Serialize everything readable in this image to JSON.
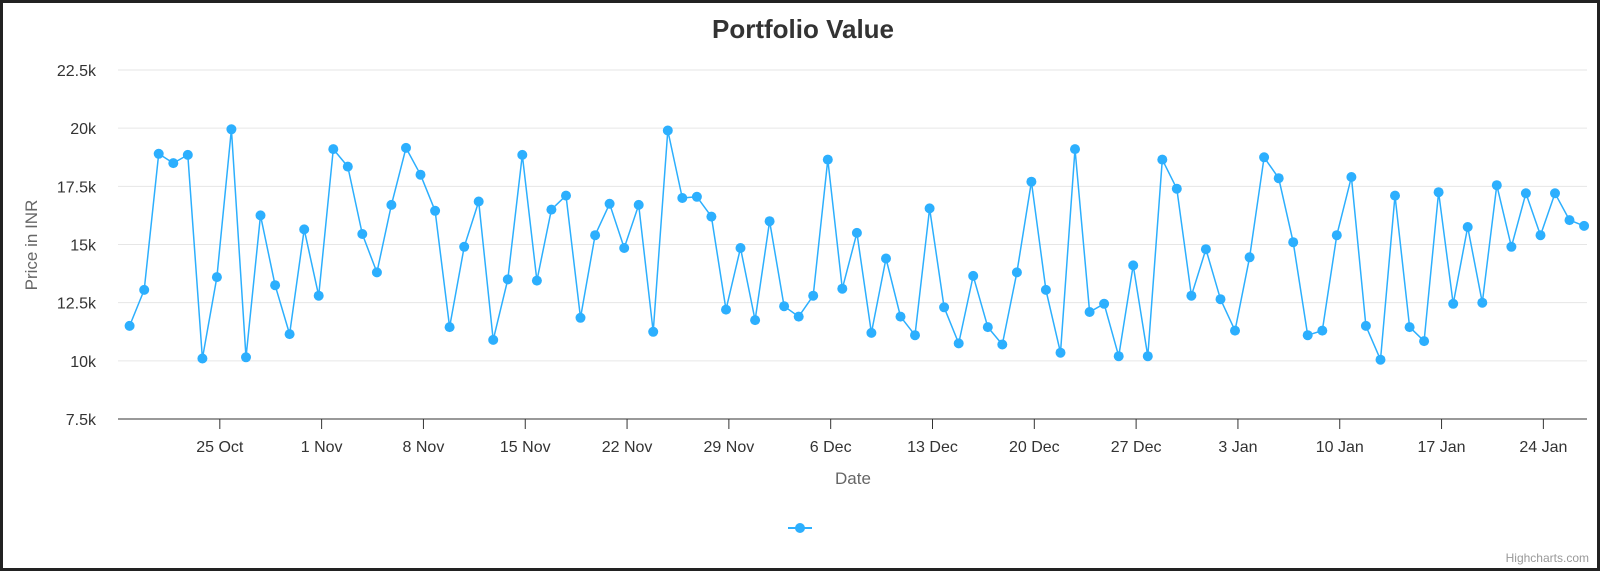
{
  "chart_data": {
    "type": "line",
    "title": "Portfolio Value",
    "xlabel": "Date",
    "ylabel": "Price in INR",
    "ylim": [
      7500,
      22500
    ],
    "y_ticks": [
      {
        "value": 7500,
        "label": "7.5k"
      },
      {
        "value": 10000,
        "label": "10k"
      },
      {
        "value": 12500,
        "label": "12.5k"
      },
      {
        "value": 15000,
        "label": "15k"
      },
      {
        "value": 17500,
        "label": "17.5k"
      },
      {
        "value": 20000,
        "label": "20k"
      },
      {
        "value": 22500,
        "label": "22.5k"
      }
    ],
    "x_ticks": [
      "25 Oct",
      "1 Nov",
      "8 Nov",
      "15 Nov",
      "22 Nov",
      "29 Nov",
      "6 Dec",
      "13 Dec",
      "20 Dec",
      "27 Dec",
      "3 Jan",
      "10 Jan",
      "17 Jan",
      "24 Jan"
    ],
    "x_tick_days": [
      7,
      14,
      21,
      28,
      35,
      42,
      49,
      56,
      63,
      70,
      77,
      84,
      91,
      98
    ],
    "x_range_days": [
      0,
      101
    ],
    "grid": true,
    "legend": "bottom-center",
    "series_color": "#2caffe",
    "series": [
      {
        "name": "",
        "x_days": [
          0.8,
          1.8,
          2.8,
          3.8,
          4.8,
          5.8,
          6.8,
          7.8,
          8.8,
          9.8,
          10.8,
          11.8,
          12.8,
          13.8,
          14.8,
          15.8,
          16.8,
          17.8,
          18.8,
          19.8,
          20.8,
          21.8,
          22.8,
          23.8,
          24.8,
          25.8,
          26.8,
          27.8,
          28.8,
          29.8,
          30.8,
          31.8,
          32.8,
          33.8,
          34.8,
          35.8,
          36.8,
          37.8,
          38.8,
          39.8,
          40.8,
          41.8,
          42.8,
          43.8,
          44.8,
          45.8,
          46.8,
          47.8,
          48.8,
          49.8,
          50.8,
          51.8,
          52.8,
          53.8,
          54.8,
          55.8,
          56.8,
          57.8,
          58.8,
          59.8,
          60.8,
          61.8,
          62.8,
          63.8,
          64.8,
          65.8,
          66.8,
          67.8,
          68.8,
          69.8,
          70.8,
          71.8,
          72.8,
          73.8,
          74.8,
          75.8,
          76.8,
          77.8,
          78.8,
          79.8,
          80.8,
          81.8,
          82.8,
          83.8,
          84.8,
          85.8,
          86.8,
          87.8,
          88.8,
          89.8,
          90.8,
          91.8,
          92.8,
          93.8,
          94.8,
          95.8,
          96.8,
          97.8,
          98.8,
          99.8,
          100.8
        ],
        "values": [
          11500,
          13050,
          18900,
          18500,
          18850,
          10100,
          13600,
          19950,
          10150,
          16250,
          13250,
          11150,
          15650,
          12800,
          19100,
          18350,
          15450,
          13800,
          16700,
          19150,
          18000,
          16450,
          11450,
          14900,
          16850,
          10900,
          13500,
          18850,
          13450,
          16500,
          17100,
          11850,
          15400,
          16750,
          14850,
          16700,
          11250,
          19900,
          17000,
          17050,
          16200,
          12200,
          14850,
          11750,
          16000,
          12350,
          11900,
          12800,
          18650,
          13100,
          15500,
          11200,
          14400,
          11900,
          11100,
          16550,
          12300,
          10750,
          13650,
          11450,
          10700,
          13800,
          17700,
          13050,
          10350,
          19100,
          12100,
          12450,
          10200,
          14100,
          10200,
          18650,
          17400,
          12800,
          14800,
          12650,
          11300,
          14450,
          18750,
          17850,
          15100,
          11100,
          11300,
          15400,
          17900,
          11500,
          10050,
          17100,
          11450,
          10850,
          17250,
          12450,
          15750,
          12500,
          17550,
          14900,
          17200,
          15400,
          17200,
          16050,
          15800
        ]
      }
    ]
  },
  "credits": "Highcharts.com"
}
